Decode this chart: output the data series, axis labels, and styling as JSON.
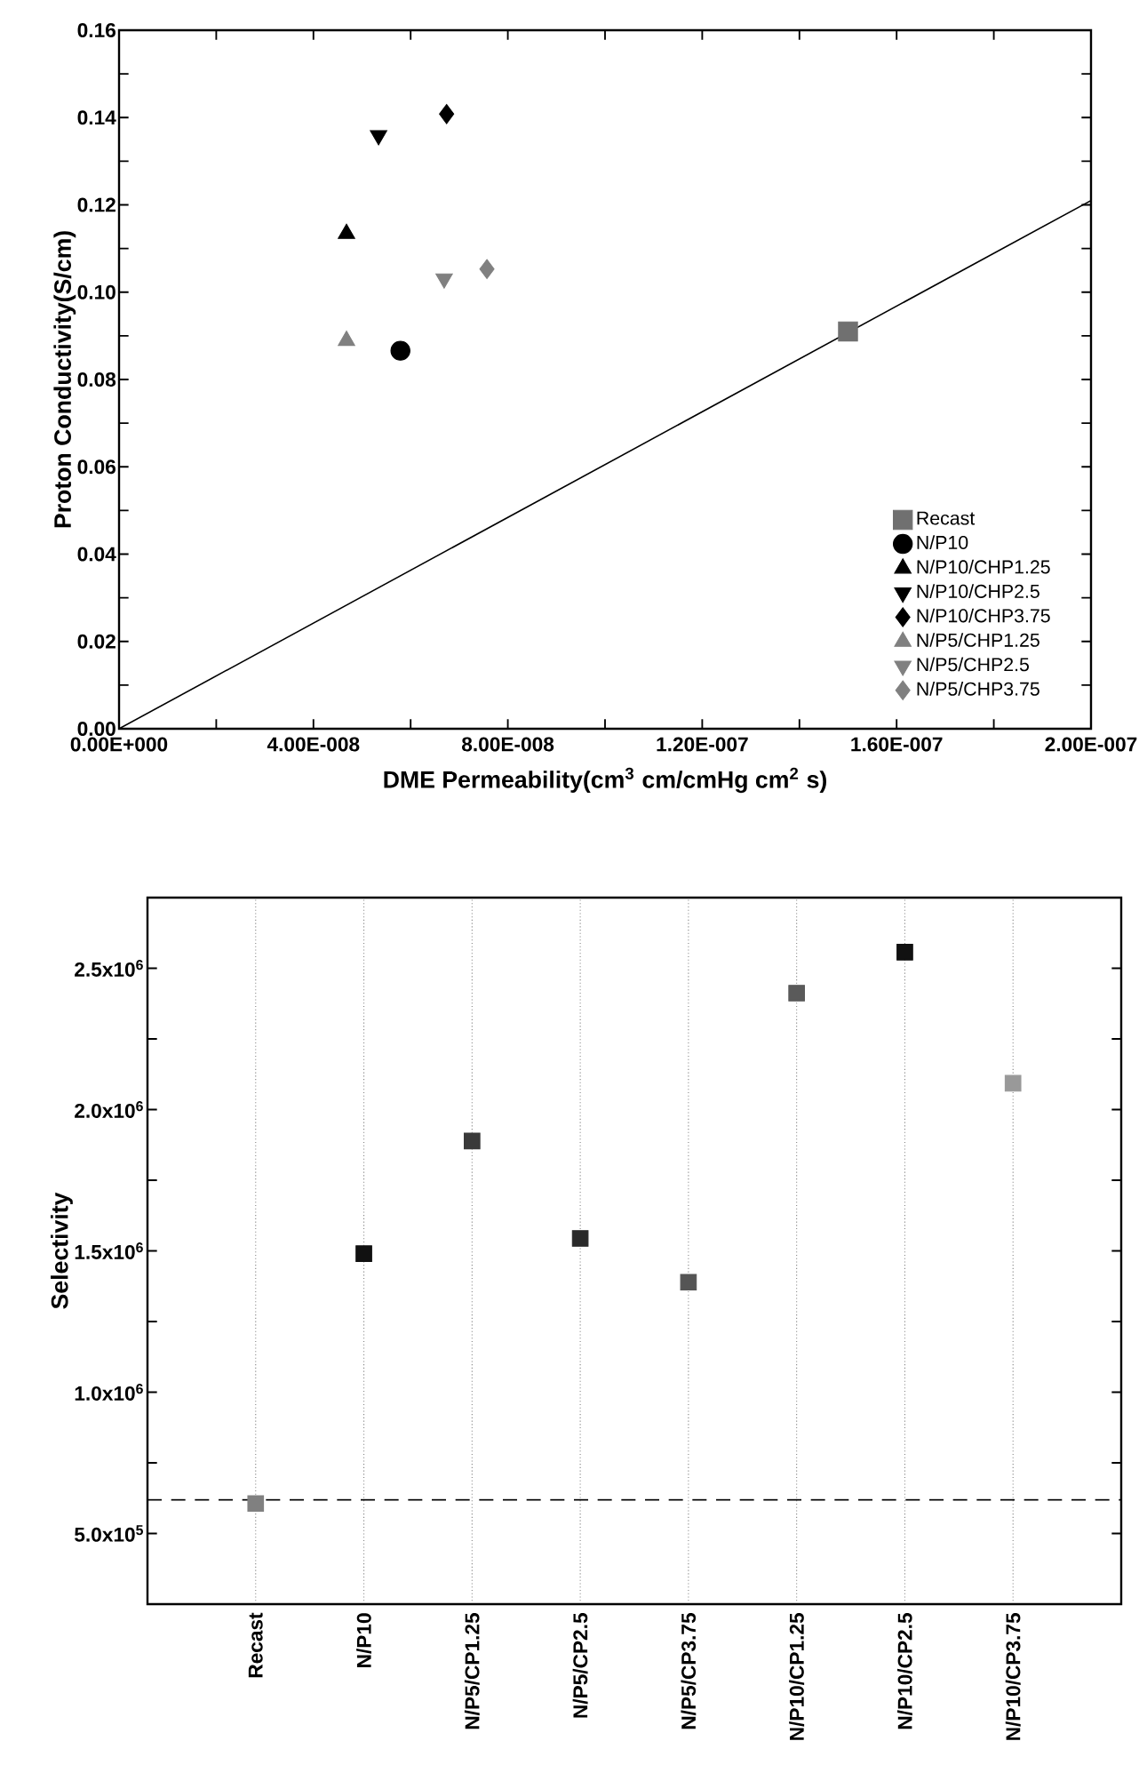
{
  "chart_data": [
    {
      "type": "scatter",
      "xlabel": "DME Permeability(cm$^{3}$ cm/cmHg cm$^{2}$ s)",
      "ylabel": "Proton Conductivity(S/cm)",
      "xlim": [
        0,
        2e-07
      ],
      "ylim": [
        0,
        0.16
      ],
      "xticks": [
        {
          "value": 0,
          "label": "0.00E+000"
        },
        {
          "value": 2e-08,
          "label": null
        },
        {
          "value": 4e-08,
          "label": "4.00E-008"
        },
        {
          "value": 6e-08,
          "label": null
        },
        {
          "value": 8e-08,
          "label": "8.00E-008"
        },
        {
          "value": 1e-07,
          "label": null
        },
        {
          "value": 1.2e-07,
          "label": "1.20E-007"
        },
        {
          "value": 1.4e-07,
          "label": null
        },
        {
          "value": 1.6e-07,
          "label": "1.60E-007"
        },
        {
          "value": 1.8e-07,
          "label": null
        },
        {
          "value": 2e-07,
          "label": "2.00E-007"
        }
      ],
      "yticks": [
        {
          "value": 0,
          "label": "0.00"
        },
        {
          "value": 0.01,
          "label": null
        },
        {
          "value": 0.02,
          "label": "0.02"
        },
        {
          "value": 0.03,
          "label": null
        },
        {
          "value": 0.04,
          "label": "0.04"
        },
        {
          "value": 0.05,
          "label": null
        },
        {
          "value": 0.06,
          "label": "0.06"
        },
        {
          "value": 0.07,
          "label": null
        },
        {
          "value": 0.08,
          "label": "0.08"
        },
        {
          "value": 0.09,
          "label": null
        },
        {
          "value": 0.1,
          "label": "0.10"
        },
        {
          "value": 0.11,
          "label": null
        },
        {
          "value": 0.12,
          "label": "0.12"
        },
        {
          "value": 0.13,
          "label": null
        },
        {
          "value": 0.14,
          "label": "0.14"
        },
        {
          "value": 0.15,
          "label": null
        },
        {
          "value": 0.16,
          "label": "0.16"
        }
      ],
      "legend": "bottom right",
      "series": [
        {
          "name": "Recast",
          "color": "#707070",
          "marker": "square",
          "x": [
            1.5e-07
          ],
          "values": [
            0.091
          ]
        },
        {
          "name": "N/P10",
          "color": "#000000",
          "marker": "circle",
          "x": [
            5.79e-08
          ],
          "values": [
            0.0866
          ]
        },
        {
          "name": "N/P10/CHP1.25",
          "color": "#000000",
          "marker": "triangle",
          "x": [
            4.68e-08
          ],
          "values": [
            0.1134
          ]
        },
        {
          "name": "N/P10/CHP2.5",
          "color": "#000000",
          "marker": "triangle down",
          "x": [
            5.34e-08
          ],
          "values": [
            0.1359
          ]
        },
        {
          "name": "N/P10/CHP3.75",
          "color": "#000000",
          "marker": "diamond",
          "x": [
            6.74e-08
          ],
          "values": [
            0.1408
          ]
        },
        {
          "name": "N/P5/CHP1.25",
          "color": "#808080",
          "marker": "triangle",
          "x": [
            4.68e-08
          ],
          "values": [
            0.0889
          ]
        },
        {
          "name": "N/P5/CHP2.5",
          "color": "#808080",
          "marker": "triangle down",
          "x": [
            6.69e-08
          ],
          "values": [
            0.1031
          ]
        },
        {
          "name": "N/P5/CHP3.75",
          "color": "#808080",
          "marker": "diamond",
          "x": [
            7.57e-08
          ],
          "values": [
            0.1053
          ]
        },
        {
          "type": "line",
          "color": "#000000",
          "x": [
            0,
            2e-07
          ],
          "values": [
            0,
            0.121
          ]
        }
      ]
    },
    {
      "type": "scatter",
      "ylabel": "Selectivity",
      "marker": "square",
      "grid": "x",
      "categories": [
        "Recast",
        "N/P10",
        "N/P5/CP1.25",
        "N/P5/CP2.5",
        "N/P5/CP3.75",
        "N/P10/CP1.25",
        "N/P10/CP2.5",
        "N/P10/CP3.75"
      ],
      "values": [
        606000,
        1490000,
        1889000,
        1544000,
        1389000,
        2412000,
        2557000,
        2093000
      ],
      "colors": [
        "#808080",
        "#111111",
        "#3a3a3a",
        "#2a2a2a",
        "#555555",
        "#5a5a5a",
        "#111111",
        "#999999"
      ],
      "ylim": [
        250000,
        2750000
      ],
      "yticks": [
        {
          "value": 500000,
          "label": "5.0x10$^{5}$"
        },
        {
          "value": 750000,
          "label": null
        },
        {
          "value": 1000000,
          "label": "1.0x10$^{6}$"
        },
        {
          "value": 1250000,
          "label": null
        },
        {
          "value": 1500000,
          "label": "1.5x10$^{6}$"
        },
        {
          "value": 1750000,
          "label": null
        },
        {
          "value": 2000000,
          "label": "2.0x10$^{6}$"
        },
        {
          "value": 2250000,
          "label": null
        },
        {
          "value": 2500000,
          "label": "2.5x10$^{6}$"
        }
      ],
      "ref_lines": [
        {
          "axis": "y",
          "value": 619000,
          "line_style": "dashed",
          "color": "#000000"
        }
      ]
    }
  ]
}
